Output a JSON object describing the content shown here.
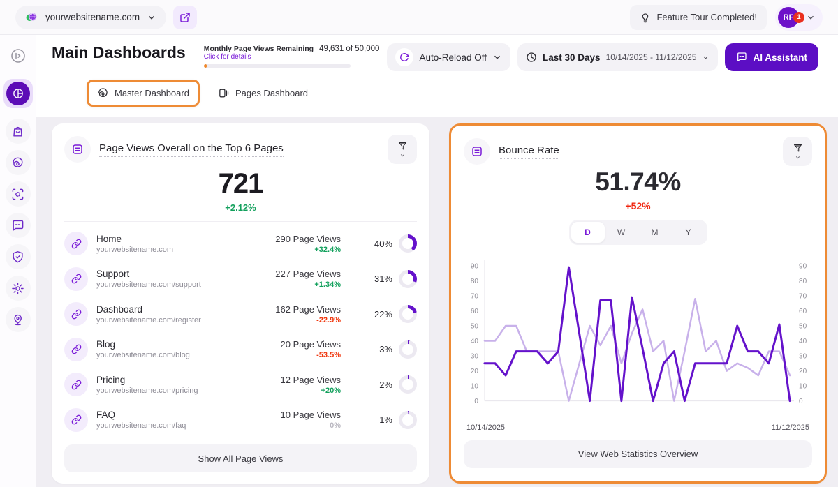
{
  "colors": {
    "purple": "#6412cb",
    "purple_light": "#c8b1ea",
    "lavender": "#f3ecfc",
    "orange_highlight": "#ee8b35",
    "green": "#12a05c",
    "red": "#f0250f",
    "donut_track": "#ece9f1"
  },
  "topbar": {
    "site_selector": {
      "label": "yourwebsitename.com",
      "icon": "globe-icon"
    },
    "open_site_icon": "external-link-icon",
    "feature_tour": "Feature Tour Completed!",
    "feature_tour_icon": "lightbulb-icon",
    "avatar_initials": "RF",
    "avatar_badge": "1"
  },
  "sidebar": {
    "items": [
      {
        "icon": "expand-sidebar-icon"
      },
      {
        "icon": "pie-chart-icon",
        "active": true
      },
      {
        "icon": "shopping-bag-icon"
      },
      {
        "icon": "spiral-icon"
      },
      {
        "icon": "screen-focus-icon"
      },
      {
        "icon": "chat-bubble-icon"
      },
      {
        "icon": "shield-check-icon"
      },
      {
        "icon": "gear-icon"
      },
      {
        "icon": "location-pin-icon"
      }
    ]
  },
  "header": {
    "title": "Main Dashboards",
    "quota": {
      "label": "Monthly Page Views Remaining",
      "value": "49,631 of 50,000",
      "link": "Click for details",
      "progress_pct": 2
    },
    "auto_reload": "Auto-Reload Off",
    "date_range_label": "Last 30 Days",
    "date_range": "10/14/2025 - 11/12/2025",
    "ai_assistant": "AI Assistant"
  },
  "tabs": [
    {
      "label": "Master Dashboard",
      "active": true
    },
    {
      "label": "Pages Dashboard",
      "active": false
    }
  ],
  "page_views_card": {
    "title": "Page Views Overall on the Top 6 Pages",
    "total": "721",
    "change": "+2.12%",
    "rows": [
      {
        "name": "Home",
        "url": "yourwebsitename.com",
        "views": "290 Page Views",
        "change": "+32.4%",
        "trend": "up",
        "pct": 40,
        "pct_label": "40%"
      },
      {
        "name": "Support",
        "url": "yourwebsitename.com/support",
        "views": "227 Page Views",
        "change": "+1.34%",
        "trend": "up",
        "pct": 31,
        "pct_label": "31%"
      },
      {
        "name": "Dashboard",
        "url": "yourwebsitename.com/register",
        "views": "162 Page Views",
        "change": "-22.9%",
        "trend": "down",
        "pct": 22,
        "pct_label": "22%"
      },
      {
        "name": "Blog",
        "url": "yourwebsitename.com/blog",
        "views": "20 Page Views",
        "change": "-53.5%",
        "trend": "down",
        "pct": 3,
        "pct_label": "3%"
      },
      {
        "name": "Pricing",
        "url": "yourwebsitename.com/pricing",
        "views": "12 Page Views",
        "change": "+20%",
        "trend": "up",
        "pct": 2,
        "pct_label": "2%"
      },
      {
        "name": "FAQ",
        "url": "yourwebsitename.com/faq",
        "views": "10 Page Views",
        "change": "0%",
        "trend": "neutral",
        "pct": 1,
        "pct_label": "1%"
      }
    ],
    "footer_button": "Show All Page Views"
  },
  "bounce_rate_card": {
    "title": "Bounce Rate",
    "value": "51.74%",
    "change": "+52%",
    "period_options": [
      "D",
      "W",
      "M",
      "Y"
    ],
    "active_period": "D",
    "footer_button": "View Web Statistics Overview"
  },
  "chart_data": {
    "type": "line",
    "title": "Bounce Rate (Daily)",
    "x_start_label": "10/14/2025",
    "x_end_label": "11/12/2025",
    "ylim": [
      0,
      90
    ],
    "y_ticks": [
      0,
      10,
      20,
      30,
      40,
      50,
      60,
      70,
      80,
      90
    ],
    "grid": false,
    "legend": "none",
    "series": [
      {
        "name": "bounce-rate-current",
        "color": "#6412cb",
        "width": 3,
        "values": [
          25,
          25,
          17,
          33,
          33,
          33,
          25,
          33,
          89,
          45,
          0,
          67,
          67,
          0,
          69,
          35,
          0,
          25,
          33,
          0,
          25,
          25,
          25,
          25,
          50,
          33,
          33,
          25,
          51,
          0
        ]
      },
      {
        "name": "bounce-rate-previous",
        "color": "#c8b1ea",
        "width": 2.5,
        "values": [
          40,
          40,
          50,
          50,
          33,
          33,
          33,
          33,
          0,
          25,
          50,
          37,
          50,
          25,
          45,
          61,
          33,
          40,
          0,
          33,
          68,
          33,
          40,
          20,
          25,
          22,
          17,
          33,
          33,
          17
        ]
      }
    ]
  }
}
